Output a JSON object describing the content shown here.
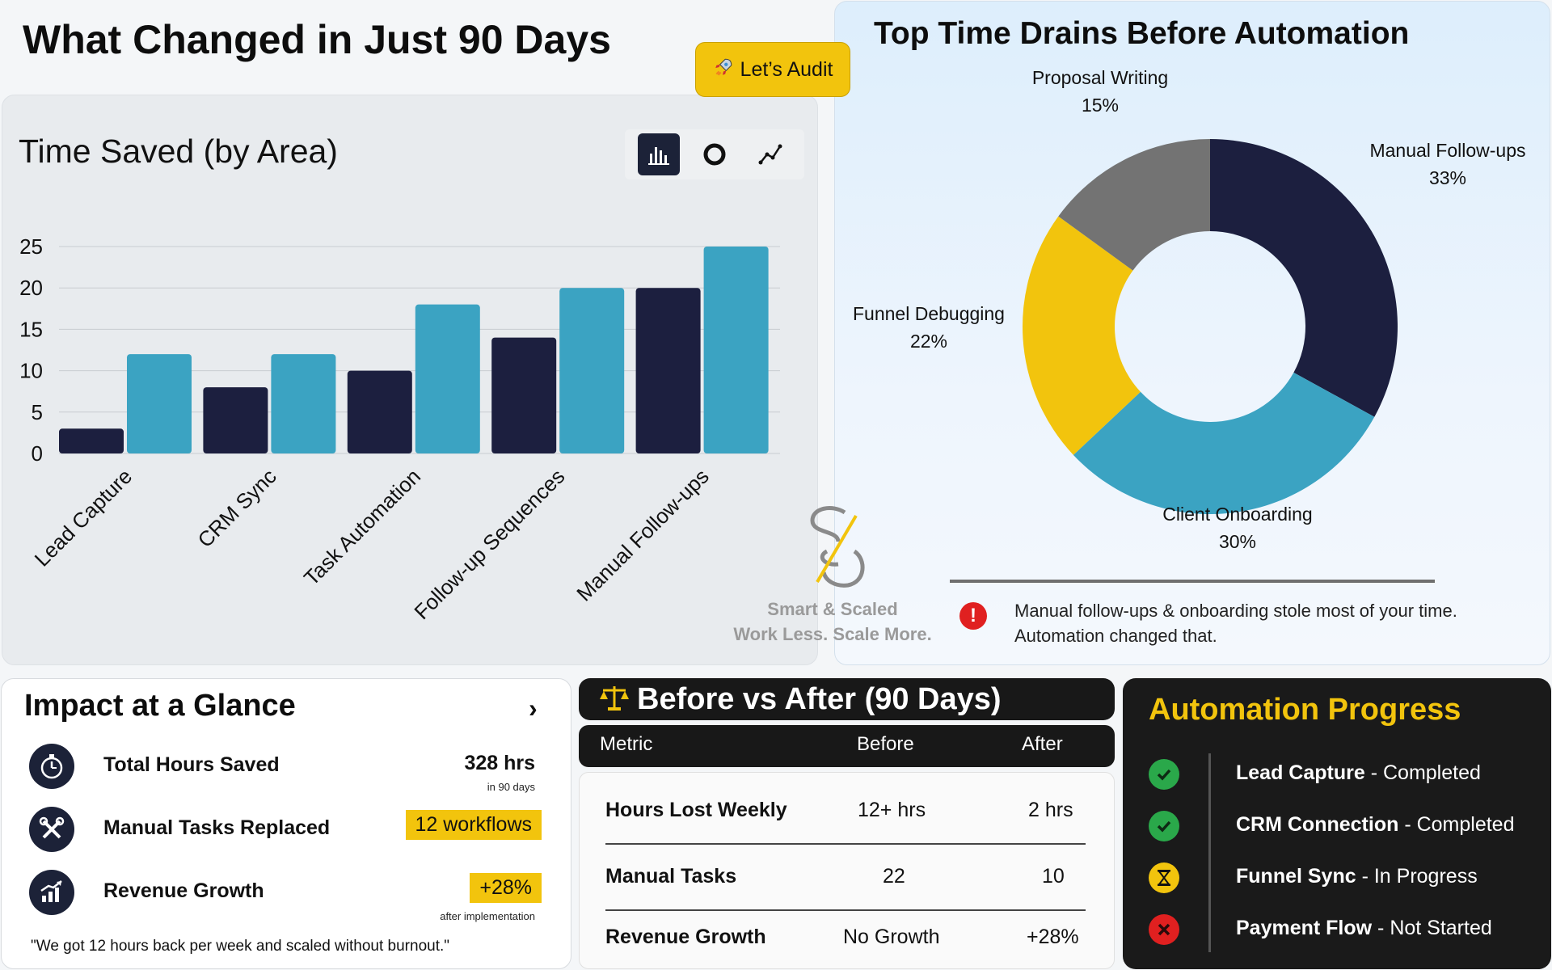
{
  "header": {
    "title": "What Changed in Just 90 Days",
    "audit_button": "Let’s Audit"
  },
  "time_saved": {
    "title": "Time Saved (by Area)",
    "switcher": {
      "bar_icon": "bar-chart-icon",
      "donut_icon": "donut-chart-icon",
      "line_icon": "line-chart-icon"
    }
  },
  "chart_data": [
    {
      "type": "bar",
      "title": "Time Saved (by Area)",
      "categories": [
        "Lead Capture",
        "CRM Sync",
        "Task Automation",
        "Follow-up Sequences",
        "Manual Follow-ups"
      ],
      "series": [
        {
          "color": "#1c1f3f",
          "values": [
            3,
            8,
            10,
            14,
            20
          ]
        },
        {
          "color": "#3ba3c2",
          "values": [
            12,
            12,
            18,
            20,
            25
          ]
        }
      ],
      "yticks": [
        0,
        5,
        10,
        15,
        20,
        25
      ],
      "ylim": [
        0,
        25
      ],
      "grid": true
    },
    {
      "type": "pie",
      "title": "Top Time Drains Before Automation",
      "slices": [
        {
          "label": "Manual Follow-ups",
          "pct_label": "33%",
          "value": 33,
          "color": "#1c1f3f"
        },
        {
          "label": "Client Onboarding",
          "pct_label": "30%",
          "value": 30,
          "color": "#3ba3c2"
        },
        {
          "label": "Funnel Debugging",
          "pct_label": "22%",
          "value": 22,
          "color": "#f2c40d"
        },
        {
          "label": "Proposal Writing",
          "pct_label": "15%",
          "value": 15,
          "color": "#737373"
        }
      ]
    }
  ],
  "time_drains": {
    "title": "Top Time Drains Before Automation",
    "alert_icon": "alert-icon",
    "alert_text": "Manual follow-ups & onboarding stole most of your time. Automation changed that."
  },
  "watermark": {
    "line1": "Smart & Scaled",
    "line2": "Work Less. Scale More."
  },
  "impact": {
    "title": "Impact at a Glance",
    "items": [
      {
        "icon": "stopwatch-icon",
        "label": "Total Hours Saved",
        "value": "328 hrs",
        "sub": "in 90 days"
      },
      {
        "icon": "tools-icon",
        "label": "Manual Tasks Replaced",
        "value": "12 workflows",
        "sub": ""
      },
      {
        "icon": "growth-chart-icon",
        "label": "Revenue Growth",
        "value": "+28%",
        "sub": "after implementation"
      }
    ],
    "quote": "\"We got 12 hours back per week and scaled without burnout.\""
  },
  "before_after": {
    "title": "Before vs After (90 Days)",
    "headers": [
      "Metric",
      "Before",
      "After"
    ],
    "rows": [
      [
        "Hours Lost Weekly",
        "12+ hrs",
        "2 hrs"
      ],
      [
        "Manual Tasks",
        "22",
        "10"
      ],
      [
        "Revenue Growth",
        "No Growth",
        "+28%"
      ]
    ]
  },
  "progress": {
    "title": "Automation Progress",
    "items": [
      {
        "name": "Lead Capture",
        "status": "Completed",
        "state": "done",
        "color": "#2aa84a"
      },
      {
        "name": "CRM Connection",
        "status": "Completed",
        "state": "done",
        "color": "#2aa84a"
      },
      {
        "name": "Funnel Sync",
        "status": "In Progress",
        "state": "progress",
        "color": "#f2c40d"
      },
      {
        "name": "Payment Flow",
        "status": "Not Started",
        "state": "blocked",
        "color": "#e02020"
      }
    ]
  }
}
